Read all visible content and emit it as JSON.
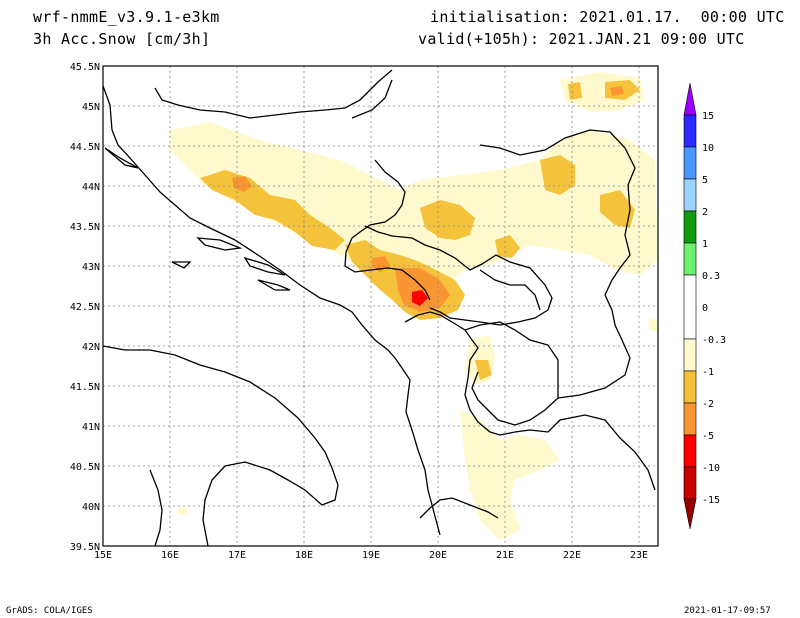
{
  "header": {
    "model": "wrf-nmmE_v3.9.1-e3km",
    "field": "3h Acc.Snow [cm/3h]",
    "init": "initialisation: 2021.01.17.  00:00 UTC",
    "valid": "valid(+105h): 2021.JAN.21 09:00 UTC"
  },
  "footer": {
    "credit": "GrADS: COLA/IGES",
    "timestamp": "2021-01-17-09:57"
  },
  "map": {
    "lon_range": [
      15,
      23.3
    ],
    "lat_range": [
      39.5,
      45.5
    ],
    "x_ticks": [
      "15E",
      "16E",
      "17E",
      "18E",
      "19E",
      "20E",
      "21E",
      "22E",
      "23E"
    ],
    "y_ticks": [
      "45.5N",
      "45N",
      "44.5N",
      "44N",
      "43.5N",
      "43N",
      "42.5N",
      "42N",
      "41.5N",
      "41N",
      "40.5N",
      "40N",
      "39.5N"
    ],
    "grid": true
  },
  "colorbar": {
    "labels": [
      "15",
      "10",
      "5",
      "2",
      "1",
      "0.3",
      "0",
      "-0.3",
      "-1",
      "-2",
      "-5",
      "-10",
      "-15"
    ],
    "colors": [
      "#9b00ff",
      "#2a2aff",
      "#4a96ff",
      "#9bd2ff",
      "#119b11",
      "#6ef06e",
      "#ffffff",
      "#fffacd",
      "#f5c23c",
      "#fa9632",
      "#ff0000",
      "#c80000",
      "#960000"
    ]
  },
  "snow_colors": {
    "light": "#fffacd",
    "moderate": "#f5c23c",
    "heavy": "#fa9632",
    "intense": "#ff0000"
  }
}
